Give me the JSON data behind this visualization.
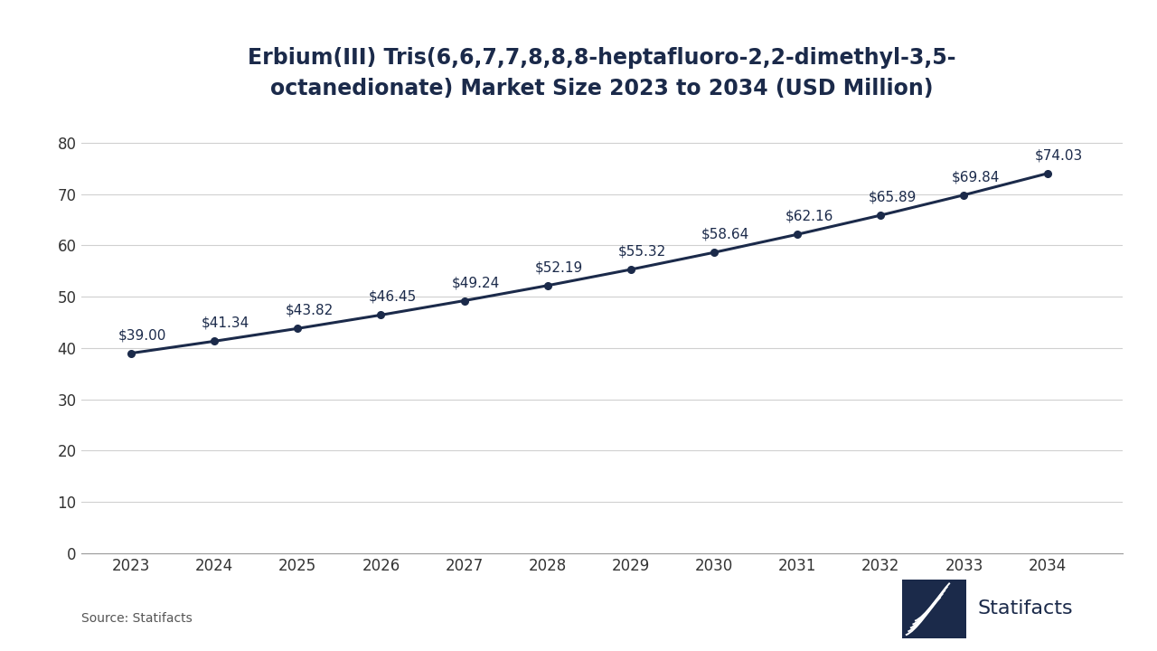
{
  "title_line1": "Erbium(III) Tris(6,6,7,7,8,8,8-heptafluoro-2,2-dimethyl-3,5-",
  "title_line2": "octanedionate) Market Size 2023 to 2034 (USD Million)",
  "years": [
    2023,
    2024,
    2025,
    2026,
    2027,
    2028,
    2029,
    2030,
    2031,
    2032,
    2033,
    2034
  ],
  "values": [
    39.0,
    41.34,
    43.82,
    46.45,
    49.24,
    52.19,
    55.32,
    58.64,
    62.16,
    65.89,
    69.84,
    74.03
  ],
  "labels": [
    "$39.00",
    "$41.34",
    "$43.82",
    "$46.45",
    "$49.24",
    "$52.19",
    "$55.32",
    "$58.64",
    "$62.16",
    "$65.89",
    "$69.84",
    "$74.03"
  ],
  "line_color": "#1b2a4a",
  "marker_color": "#1b2a4a",
  "background_color": "#ffffff",
  "grid_color": "#d0d0d0",
  "title_fontsize": 17,
  "label_fontsize": 11,
  "tick_fontsize": 12,
  "ylim": [
    0,
    85
  ],
  "yticks": [
    0,
    10,
    20,
    30,
    40,
    50,
    60,
    70,
    80
  ],
  "source_text": "Source: Statifacts",
  "source_fontsize": 10,
  "statifacts_text": "Statifacts",
  "statifacts_fontsize": 16
}
